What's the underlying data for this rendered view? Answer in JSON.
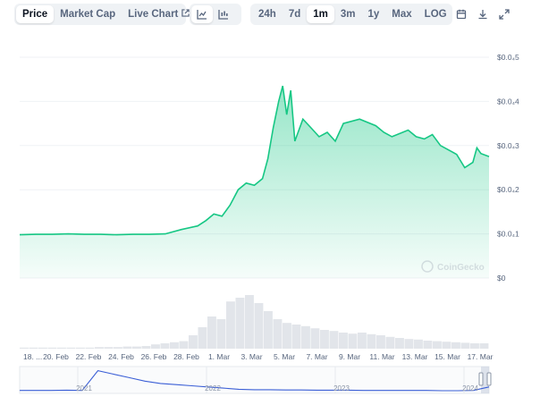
{
  "toolbar": {
    "tabs": [
      {
        "label": "Price",
        "active": true
      },
      {
        "label": "Market Cap",
        "active": false
      },
      {
        "label": "Live Chart",
        "active": false,
        "external": true
      }
    ],
    "chart_type_icons": [
      "line-chart-icon",
      "candlestick-chart-icon"
    ],
    "ranges": [
      "24h",
      "7d",
      "1m",
      "3m",
      "1y",
      "Max",
      "LOG"
    ],
    "active_range": "1m",
    "action_icons": [
      "calendar-icon",
      "download-icon",
      "expand-icon"
    ]
  },
  "watermark": "CoinGecko",
  "colors": {
    "line": "#16c784",
    "fill": "#16c784",
    "navigator_line": "#3b5fd6",
    "grid": "#eff2f5",
    "axis_text": "#58667e"
  },
  "chart_data": {
    "type": "area",
    "y_ticks": [
      "$0.0₄5",
      "$0.0₄4",
      "$0.0₄3",
      "$0.0₄2",
      "$0.0₄1",
      "$0"
    ],
    "x_ticks": [
      "18. ...",
      "20. Feb",
      "22. Feb",
      "24. Feb",
      "26. Feb",
      "28. Feb",
      "1. Mar",
      "3. Mar",
      "5. Mar",
      "7. Mar",
      "9. Mar",
      "11. Mar",
      "13. Mar",
      "15. Mar",
      "17. Mar"
    ],
    "ylim": [
      0,
      5e-05
    ],
    "x_range": [
      "2024-02-18",
      "2024-03-18"
    ],
    "series": [
      {
        "points": [
          [
            "2024-02-18 00:00",
            9.8e-06
          ],
          [
            "2024-02-19 00:00",
            9.9e-06
          ],
          [
            "2024-02-20 00:00",
            9.9e-06
          ],
          [
            "2024-02-21 00:00",
            1e-05
          ],
          [
            "2024-02-22 00:00",
            9.9e-06
          ],
          [
            "2024-02-23 00:00",
            9.9e-06
          ],
          [
            "2024-02-24 00:00",
            9.8e-06
          ],
          [
            "2024-02-25 00:00",
            9.9e-06
          ],
          [
            "2024-02-26 00:00",
            9.9e-06
          ],
          [
            "2024-02-27 00:00",
            1e-05
          ],
          [
            "2024-02-28 00:00",
            1.1e-05
          ],
          [
            "2024-02-29 00:00",
            1.18e-05
          ],
          [
            "2024-02-29 12:00",
            1.3e-05
          ],
          [
            "2024-03-01 00:00",
            1.45e-05
          ],
          [
            "2024-03-01 12:00",
            1.4e-05
          ],
          [
            "2024-03-02 00:00",
            1.65e-05
          ],
          [
            "2024-03-02 12:00",
            2e-05
          ],
          [
            "2024-03-03 00:00",
            2.15e-05
          ],
          [
            "2024-03-03 12:00",
            2.1e-05
          ],
          [
            "2024-03-04 00:00",
            2.25e-05
          ],
          [
            "2024-03-04 08:00",
            2.7e-05
          ],
          [
            "2024-03-04 16:00",
            3.4e-05
          ],
          [
            "2024-03-05 00:00",
            4e-05
          ],
          [
            "2024-03-05 06:00",
            4.35e-05
          ],
          [
            "2024-03-05 12:00",
            3.7e-05
          ],
          [
            "2024-03-05 18:00",
            4.25e-05
          ],
          [
            "2024-03-06 00:00",
            3.1e-05
          ],
          [
            "2024-03-06 12:00",
            3.6e-05
          ],
          [
            "2024-03-07 00:00",
            3.4e-05
          ],
          [
            "2024-03-07 12:00",
            3.2e-05
          ],
          [
            "2024-03-08 00:00",
            3.3e-05
          ],
          [
            "2024-03-08 12:00",
            3.1e-05
          ],
          [
            "2024-03-09 00:00",
            3.5e-05
          ],
          [
            "2024-03-10 00:00",
            3.6e-05
          ],
          [
            "2024-03-11 00:00",
            3.45e-05
          ],
          [
            "2024-03-11 12:00",
            3.3e-05
          ],
          [
            "2024-03-12 00:00",
            3.2e-05
          ],
          [
            "2024-03-13 00:00",
            3.35e-05
          ],
          [
            "2024-03-13 12:00",
            3.2e-05
          ],
          [
            "2024-03-14 00:00",
            3.15e-05
          ],
          [
            "2024-03-14 12:00",
            3.25e-05
          ],
          [
            "2024-03-15 00:00",
            3e-05
          ],
          [
            "2024-03-15 12:00",
            2.9e-05
          ],
          [
            "2024-03-16 00:00",
            2.8e-05
          ],
          [
            "2024-03-16 12:00",
            2.5e-05
          ],
          [
            "2024-03-17 00:00",
            2.62e-05
          ],
          [
            "2024-03-17 06:00",
            2.95e-05
          ],
          [
            "2024-03-17 12:00",
            2.82e-05
          ],
          [
            "2024-03-18 00:00",
            2.75e-05
          ]
        ]
      }
    ],
    "volume": [
      2,
      2,
      2,
      2,
      2,
      2,
      2,
      2,
      3,
      3,
      3,
      4,
      4,
      5,
      8,
      10,
      12,
      14,
      25,
      40,
      60,
      55,
      88,
      95,
      100,
      85,
      70,
      55,
      48,
      45,
      42,
      38,
      35,
      33,
      30,
      28,
      30,
      27,
      25,
      22,
      20,
      18,
      17,
      15,
      14,
      13,
      12,
      11,
      10,
      10
    ],
    "navigator": {
      "x_ticks": [
        "2021",
        "2022",
        "2023",
        "2024"
      ],
      "values": [
        0.05,
        0.05,
        0.05,
        0.06,
        0.05,
        0.9,
        0.75,
        0.6,
        0.45,
        0.35,
        0.3,
        0.25,
        0.2,
        0.15,
        0.1,
        0.08,
        0.08,
        0.07,
        0.07,
        0.06,
        0.06,
        0.06,
        0.05,
        0.05,
        0.05,
        0.05,
        0.05,
        0.04,
        0.04,
        0.05,
        0.2
      ]
    }
  }
}
